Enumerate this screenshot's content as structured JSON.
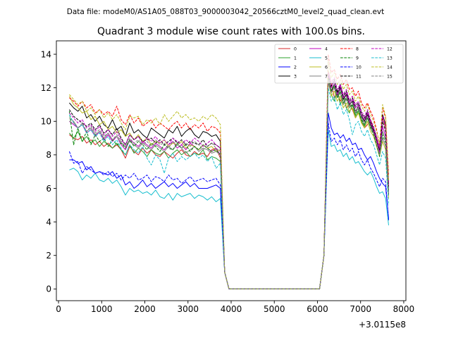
{
  "chart_data": {
    "type": "line",
    "suptitle": "Data file: modeM0/AS1A05_088T03_9000003042_20566cztM0_level2_quad_clean.evt",
    "title": "Quadrant 3 module wise count rates with 100.0s bins.",
    "xlabel": "",
    "ylabel": "",
    "offset_label": "+3.0115e8",
    "xlim": [
      -50,
      8050
    ],
    "ylim": [
      -0.7,
      14.8
    ],
    "x_ticks": [
      0,
      1000,
      2000,
      3000,
      4000,
      5000,
      6000,
      7000,
      8000
    ],
    "x_tick_labels": [
      "0",
      "1000",
      "2000",
      "3000",
      "4000",
      "5000",
      "6000",
      "7000",
      "8000"
    ],
    "y_ticks": [
      0,
      2,
      4,
      6,
      8,
      10,
      12,
      14
    ],
    "y_tick_labels": [
      "0",
      "2",
      "4",
      "6",
      "8",
      "10",
      "12",
      "14"
    ],
    "legend_position": "upper-right",
    "legend_columns": 4,
    "gap": {
      "off_start": 3850,
      "zero_start": 3950,
      "zero_end": 6050,
      "on_end": 6150
    },
    "series": [
      {
        "name": "0",
        "color": "#d62728",
        "dash": "solid",
        "seg1": [
          9.2,
          9.0,
          8.9,
          9.1,
          8.7,
          8.9,
          8.6,
          8.8,
          8.5,
          8.7,
          8.4,
          8.6,
          8.3,
          7.8,
          8.5,
          8.2,
          8.0,
          8.4,
          8.1,
          8.3,
          8.0,
          7.9,
          8.2,
          8.0,
          7.8,
          8.1,
          8.3,
          8.0,
          7.9,
          8.2,
          8.0,
          8.1,
          7.9,
          8.3,
          8.4,
          7.8
        ],
        "seg2": [
          13.0,
          12.3,
          11.4,
          11.8,
          11.2,
          11.5,
          10.8,
          11.0,
          10.7,
          10.2,
          10.5,
          10.0,
          9.6,
          9.8,
          10.1,
          9.5,
          9.0,
          8.3,
          10.2,
          9.6,
          6.1
        ]
      },
      {
        "name": "1",
        "color": "#2ca02c",
        "dash": "solid",
        "seg1": [
          9.3,
          9.0,
          9.4,
          8.8,
          9.1,
          8.7,
          8.9,
          8.5,
          8.8,
          8.6,
          8.4,
          8.7,
          8.3,
          8.0,
          8.6,
          8.1,
          8.4,
          8.2,
          7.9,
          8.3,
          8.1,
          8.0,
          8.2,
          7.8,
          8.1,
          8.3,
          8.0,
          8.2,
          7.9,
          8.1,
          8.0,
          8.3,
          7.7,
          7.9,
          7.8,
          7.6
        ],
        "seg2": [
          12.5,
          11.6,
          11.2,
          11.9,
          11.0,
          11.5,
          10.8,
          10.5,
          11.0,
          10.3,
          10.6,
          10.0,
          9.7,
          10.2,
          9.8,
          9.4,
          8.8,
          8.1,
          9.4,
          8.9,
          5.9
        ]
      },
      {
        "name": "2",
        "color": "#0000ff",
        "dash": "solid",
        "seg1": [
          7.7,
          7.7,
          7.5,
          7.6,
          7.1,
          7.3,
          6.9,
          7.0,
          6.9,
          6.8,
          7.0,
          6.6,
          6.8,
          6.2,
          6.4,
          6.0,
          6.2,
          6.5,
          6.1,
          6.3,
          6.0,
          6.2,
          6.4,
          6.1,
          6.3,
          6.0,
          6.2,
          6.4,
          6.1,
          6.3,
          6.0,
          6.0,
          6.0,
          6.1,
          6.2,
          6.0
        ],
        "seg2": [
          10.5,
          9.6,
          9.2,
          9.3,
          9.0,
          9.2,
          8.8,
          9.0,
          8.6,
          8.7,
          8.3,
          8.4,
          8.0,
          7.7,
          7.9,
          7.5,
          7.0,
          6.6,
          6.3,
          6.1,
          4.2
        ]
      },
      {
        "name": "3",
        "color": "#000000",
        "dash": "solid",
        "seg1": [
          11.1,
          10.8,
          10.6,
          10.9,
          10.2,
          10.4,
          10.0,
          10.3,
          9.8,
          9.6,
          10.1,
          9.5,
          9.7,
          9.1,
          9.9,
          9.3,
          9.5,
          9.2,
          9.0,
          9.6,
          9.4,
          9.2,
          9.0,
          9.5,
          9.3,
          9.7,
          9.1,
          9.4,
          9.6,
          9.2,
          9.0,
          9.4,
          9.3,
          9.1,
          9.2,
          8.8
        ],
        "seg2": [
          12.6,
          11.8,
          12.2,
          11.5,
          12.0,
          11.3,
          11.6,
          11.0,
          11.2,
          10.6,
          10.9,
          10.3,
          10.0,
          10.4,
          9.8,
          9.4,
          8.8,
          8.2,
          10.4,
          9.8,
          6.3
        ]
      },
      {
        "name": "4",
        "color": "#bf00bf",
        "dash": "solid",
        "seg1": [
          10.0,
          9.8,
          9.6,
          9.8,
          9.3,
          9.5,
          9.1,
          9.4,
          8.9,
          9.2,
          8.8,
          9.1,
          8.6,
          8.3,
          8.9,
          8.7,
          8.5,
          8.8,
          8.6,
          8.4,
          8.7,
          8.5,
          8.3,
          8.6,
          8.8,
          8.4,
          8.6,
          8.3,
          8.7,
          8.5,
          8.3,
          8.6,
          8.4,
          8.2,
          8.4,
          8.0
        ],
        "seg2": [
          12.8,
          12.0,
          12.4,
          11.6,
          12.1,
          11.4,
          11.7,
          11.1,
          11.3,
          10.8,
          11.0,
          10.4,
          10.1,
          10.5,
          9.9,
          9.5,
          8.9,
          8.1,
          9.7,
          9.1,
          6.0
        ]
      },
      {
        "name": "5",
        "color": "#17becf",
        "dash": "solid",
        "seg1": [
          7.1,
          7.2,
          7.0,
          6.5,
          6.8,
          6.6,
          6.9,
          6.5,
          6.4,
          6.6,
          6.3,
          6.5,
          6.1,
          5.6,
          6.0,
          5.8,
          5.9,
          5.7,
          5.8,
          5.6,
          5.9,
          5.5,
          5.4,
          5.7,
          5.3,
          5.7,
          5.5,
          5.6,
          5.7,
          5.4,
          5.6,
          5.5,
          5.3,
          5.5,
          5.2,
          5.4
        ],
        "seg2": [
          9.5,
          8.5,
          8.6,
          8.2,
          8.3,
          7.9,
          8.1,
          7.7,
          7.9,
          7.5,
          7.6,
          7.3,
          7.0,
          6.8,
          7.0,
          6.6,
          6.1,
          5.7,
          5.8,
          5.4,
          3.8
        ]
      },
      {
        "name": "6",
        "color": "#bcbd22",
        "dash": "solid",
        "seg1": [
          11.5,
          11.0,
          10.8,
          10.5,
          10.6,
          10.1,
          10.3,
          9.8,
          10.0,
          9.5,
          9.7,
          9.3,
          9.5,
          9.1,
          9.3,
          8.9,
          9.2,
          8.8,
          9.0,
          8.6,
          8.8,
          8.7,
          8.9,
          8.5,
          8.7,
          8.6,
          8.8,
          8.4,
          8.6,
          8.5,
          8.3,
          8.6,
          8.4,
          8.5,
          8.2,
          8.3
        ],
        "seg2": [
          12.4,
          11.5,
          11.8,
          11.2,
          11.5,
          10.8,
          11.1,
          10.6,
          10.8,
          10.2,
          10.5,
          9.9,
          9.6,
          10.0,
          9.4,
          9.1,
          8.5,
          7.9,
          8.8,
          8.3,
          5.4
        ]
      },
      {
        "name": "7",
        "color": "#7f7f7f",
        "dash": "solid",
        "seg1": [
          10.2,
          10.0,
          9.6,
          9.8,
          9.4,
          9.6,
          9.2,
          9.4,
          9.0,
          9.3,
          8.9,
          9.1,
          8.7,
          8.5,
          8.8,
          8.6,
          8.4,
          8.7,
          8.5,
          8.3,
          8.6,
          8.4,
          8.2,
          8.5,
          8.3,
          8.6,
          8.4,
          8.1,
          8.3,
          8.5,
          8.2,
          8.4,
          8.3,
          8.1,
          8.2,
          8.0
        ],
        "seg2": [
          12.3,
          11.7,
          12.0,
          11.4,
          11.7,
          11.0,
          11.3,
          10.9,
          11.0,
          10.5,
          10.8,
          10.2,
          9.8,
          10.2,
          9.6,
          9.3,
          8.7,
          8.0,
          9.0,
          8.5,
          5.6
        ]
      },
      {
        "name": "8",
        "color": "#ff0000",
        "dash": "dashed",
        "seg1": [
          11.4,
          11.2,
          10.9,
          11.2,
          10.8,
          11.0,
          10.5,
          10.7,
          10.4,
          10.6,
          10.3,
          10.9,
          10.1,
          9.8,
          10.4,
          9.9,
          10.2,
          9.7,
          9.9,
          10.1,
          9.6,
          9.9,
          9.7,
          9.5,
          9.8,
          10.0,
          9.6,
          9.9,
          9.5,
          9.8,
          9.6,
          9.9,
          9.4,
          9.7,
          9.6,
          9.3
        ],
        "seg2": [
          14.0,
          12.9,
          13.1,
          12.5,
          12.8,
          12.2,
          12.5,
          11.9,
          12.0,
          11.5,
          11.8,
          11.1,
          10.8,
          11.1,
          10.6,
          10.2,
          9.5,
          8.6,
          10.8,
          10.2,
          6.8
        ]
      },
      {
        "name": "9",
        "color": "#008000",
        "dash": "dashed",
        "seg1": [
          10.6,
          8.6,
          9.6,
          8.8,
          9.4,
          8.6,
          9.2,
          8.8,
          9.0,
          8.5,
          8.9,
          8.6,
          8.7,
          8.4,
          8.9,
          8.5,
          8.8,
          8.6,
          8.3,
          8.7,
          8.5,
          8.2,
          8.6,
          8.4,
          8.3,
          8.7,
          8.4,
          8.6,
          8.2,
          8.5,
          8.3,
          8.6,
          8.4,
          8.2,
          8.3,
          8.0
        ],
        "seg2": [
          12.6,
          11.8,
          12.1,
          11.4,
          11.8,
          11.1,
          11.4,
          10.8,
          11.0,
          10.4,
          10.7,
          10.1,
          9.8,
          10.2,
          9.6,
          9.2,
          8.6,
          7.9,
          9.2,
          8.7,
          5.7
        ]
      },
      {
        "name": "10",
        "color": "#0000ff",
        "dash": "dashed",
        "seg1": [
          8.2,
          7.5,
          7.6,
          6.9,
          7.3,
          7.1,
          6.9,
          7.0,
          6.8,
          7.0,
          6.7,
          6.9,
          6.5,
          6.8,
          6.6,
          6.9,
          6.5,
          6.6,
          6.8,
          6.4,
          6.7,
          6.6,
          6.4,
          6.8,
          6.5,
          6.6,
          6.3,
          6.5,
          6.7,
          6.4,
          6.5,
          6.6,
          6.4,
          6.5,
          6.6,
          6.2
        ],
        "seg2": [
          9.9,
          8.8,
          9.0,
          8.6,
          8.9,
          8.3,
          8.6,
          8.2,
          8.4,
          7.9,
          8.2,
          7.7,
          7.4,
          7.7,
          7.2,
          6.9,
          6.5,
          6.1,
          6.6,
          6.4,
          4.1
        ]
      },
      {
        "name": "11",
        "color": "#000000",
        "dash": "dashed",
        "seg1": [
          10.7,
          10.3,
          10.1,
          9.9,
          9.7,
          9.9,
          9.5,
          9.8,
          9.3,
          9.5,
          9.2,
          9.6,
          9.0,
          8.6,
          9.2,
          8.9,
          9.1,
          8.8,
          8.9,
          9.0,
          8.7,
          8.9,
          8.6,
          8.8,
          9.0,
          8.7,
          8.9,
          8.6,
          8.8,
          8.7,
          8.6,
          8.9,
          8.5,
          8.7,
          8.6,
          8.4
        ],
        "seg2": [
          12.7,
          12.1,
          12.5,
          11.7,
          12.2,
          11.5,
          11.8,
          11.2,
          11.4,
          10.9,
          11.1,
          10.5,
          10.2,
          10.6,
          10.0,
          9.6,
          9.0,
          8.3,
          10.0,
          9.4,
          6.1
        ]
      },
      {
        "name": "12",
        "color": "#bf00bf",
        "dash": "dashed",
        "seg1": [
          10.5,
          10.2,
          9.9,
          10.1,
          9.6,
          9.8,
          9.4,
          9.7,
          9.2,
          9.5,
          9.1,
          9.4,
          8.9,
          8.6,
          9.2,
          8.9,
          9.1,
          8.7,
          9.0,
          8.8,
          9.1,
          8.7,
          8.9,
          8.6,
          9.0,
          8.8,
          8.6,
          8.9,
          8.7,
          9.0,
          8.8,
          8.5,
          8.7,
          8.9,
          8.6,
          8.4
        ],
        "seg2": [
          12.9,
          12.3,
          12.6,
          11.9,
          12.2,
          11.6,
          11.9,
          11.3,
          11.5,
          11.0,
          11.2,
          10.6,
          10.3,
          10.7,
          10.1,
          9.7,
          9.1,
          8.4,
          10.3,
          9.7,
          6.2
        ]
      },
      {
        "name": "13",
        "color": "#17becf",
        "dash": "dashed",
        "seg1": [
          10.4,
          9.9,
          9.6,
          9.8,
          9.3,
          9.5,
          9.1,
          9.3,
          8.8,
          9.1,
          8.6,
          8.9,
          8.4,
          8.0,
          8.6,
          8.3,
          8.1,
          8.5,
          7.8,
          7.4,
          8.0,
          7.7,
          6.9,
          7.8,
          8.1,
          7.6,
          7.9,
          7.7,
          7.9,
          8.1,
          7.8,
          8.0,
          7.6,
          7.9,
          7.2,
          7.5
        ],
        "seg2": [
          12.0,
          11.2,
          11.5,
          10.7,
          11.1,
          10.4,
          10.7,
          10.1,
          9.2,
          9.8,
          10.0,
          9.4,
          9.1,
          9.5,
          8.9,
          8.6,
          8.0,
          7.4,
          8.2,
          7.8,
          5.0
        ]
      },
      {
        "name": "14",
        "color": "#bcbd22",
        "dash": "dashed",
        "seg1": [
          11.6,
          11.3,
          11.0,
          11.2,
          10.6,
          10.8,
          10.4,
          10.7,
          10.2,
          10.5,
          10.1,
          10.4,
          9.9,
          9.5,
          10.3,
          10.2,
          10.3,
          9.8,
          10.1,
          9.9,
          10.2,
          9.8,
          10.4,
          10.0,
          10.3,
          10.6,
          10.2,
          10.4,
          10.1,
          10.2,
          10.0,
          10.3,
          10.1,
          10.4,
          10.2,
          9.8
        ],
        "seg2": [
          13.6,
          12.6,
          12.9,
          12.2,
          12.5,
          11.9,
          12.2,
          11.6,
          11.8,
          11.2,
          11.5,
          10.9,
          10.6,
          11.0,
          10.4,
          10.0,
          9.4,
          8.7,
          11.0,
          10.3,
          6.5
        ]
      },
      {
        "name": "15",
        "color": "#7f7f7f",
        "dash": "dashed",
        "seg1": [
          10.0,
          9.9,
          9.6,
          9.9,
          9.4,
          9.7,
          9.3,
          9.5,
          9.1,
          9.3,
          8.9,
          9.2,
          8.8,
          8.5,
          9.0,
          8.7,
          8.9,
          8.6,
          8.8,
          8.5,
          8.9,
          8.6,
          8.7,
          8.4,
          8.8,
          8.6,
          8.4,
          8.7,
          8.5,
          8.8,
          8.6,
          8.3,
          8.5,
          8.7,
          8.4,
          8.2
        ],
        "seg2": [
          12.5,
          11.9,
          12.2,
          11.5,
          11.9,
          11.2,
          11.5,
          10.9,
          11.1,
          10.6,
          10.9,
          10.2,
          9.9,
          10.3,
          9.7,
          9.3,
          8.7,
          8.0,
          9.4,
          8.9,
          5.8
        ]
      }
    ]
  }
}
